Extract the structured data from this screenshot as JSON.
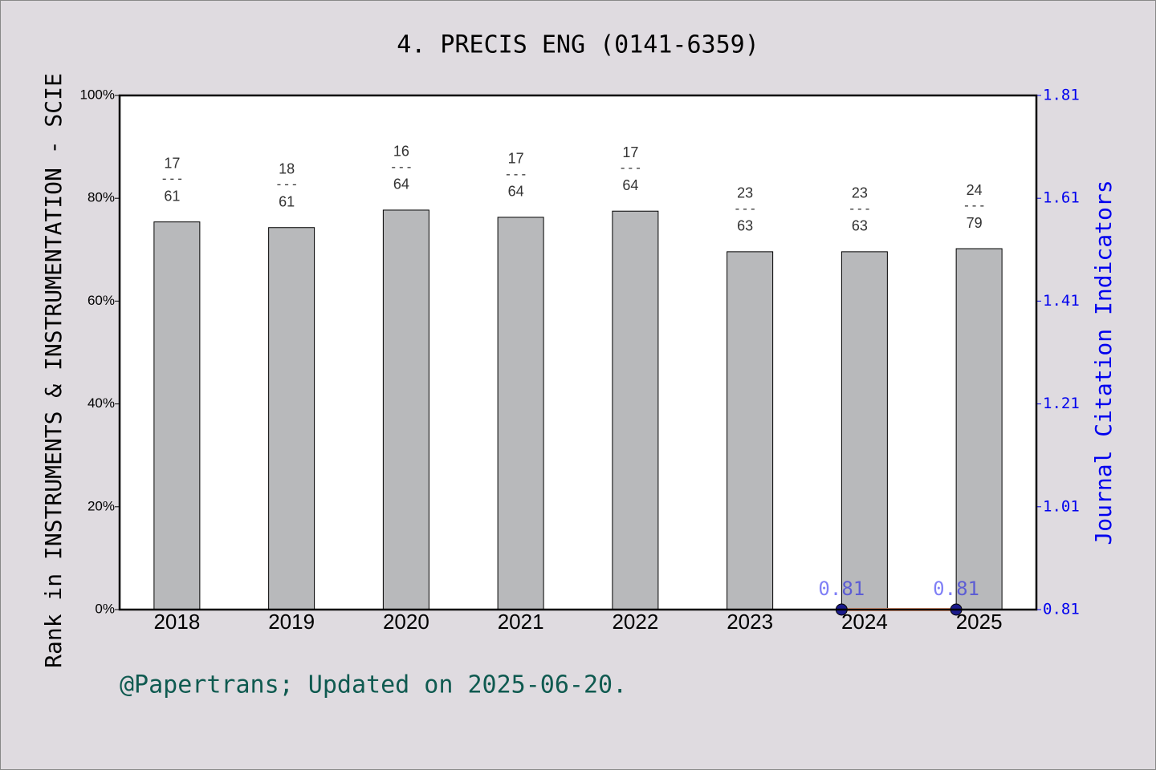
{
  "chart_data": {
    "type": "bar",
    "title": "4. PRECIS ENG (0141-6359)",
    "y_label": "Rank in INSTRUMENTS & INSTRUMENTATION - SCIE",
    "y2_label": "Journal Citation Indicators",
    "footer": "@Papertrans; Updated on 2025-06-20.",
    "categories": [
      "2018",
      "2019",
      "2020",
      "2021",
      "2022",
      "2023",
      "2024",
      "2025"
    ],
    "series": [
      {
        "type": "bar",
        "color": "#b8b9bb",
        "values": [
          75.4,
          74.3,
          77.7,
          76.3,
          77.5,
          69.6,
          69.6,
          70.2
        ],
        "ranks": [
          17,
          18,
          16,
          17,
          17,
          23,
          23,
          24
        ],
        "totals": [
          61,
          61,
          64,
          64,
          64,
          63,
          63,
          79
        ],
        "separator": "---"
      },
      {
        "type": "line",
        "axis": "y2",
        "color": "#f4a582",
        "marker_color": "#1a1a8c",
        "values": [
          null,
          null,
          null,
          null,
          null,
          null,
          0.81,
          0.81
        ]
      }
    ],
    "ylim": [
      0,
      100
    ],
    "yticks": [
      {
        "value": 0,
        "label": "0%"
      },
      {
        "value": 20,
        "label": "20%"
      },
      {
        "value": 40,
        "label": "40%"
      },
      {
        "value": 60,
        "label": "60%"
      },
      {
        "value": 80,
        "label": "80%"
      },
      {
        "value": 100,
        "label": "100%"
      }
    ],
    "y2lim": [
      0.81,
      1.81
    ],
    "y2ticks": [
      0.81,
      1.01,
      1.21,
      1.41,
      1.61,
      1.81
    ]
  }
}
